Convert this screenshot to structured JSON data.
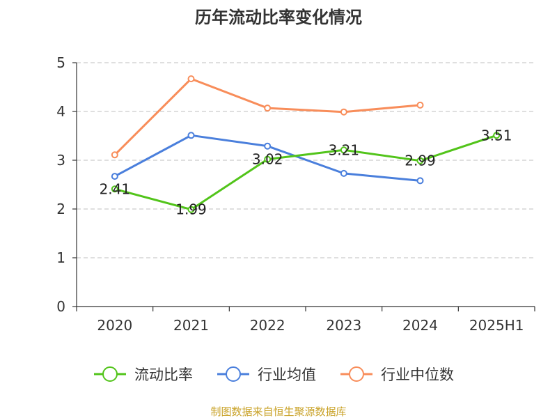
{
  "chart_data": {
    "type": "line",
    "title": "历年流动比率变化情况",
    "categories": [
      "2020",
      "2021",
      "2022",
      "2023",
      "2024",
      "2025H1"
    ],
    "ylim": [
      0,
      5
    ],
    "yticks": [
      "0",
      "1",
      "2",
      "3",
      "4",
      "5"
    ],
    "grid": true,
    "legend_position": "bottom",
    "series": [
      {
        "name": "流动比率",
        "color": "#52c41a",
        "values": [
          2.41,
          1.99,
          3.02,
          3.21,
          2.99,
          3.51
        ],
        "labels": [
          "2.41",
          "1.99",
          "3.02",
          "3.21",
          "2.99",
          "3.51"
        ]
      },
      {
        "name": "行业均值",
        "color": "#4a7fdc",
        "values": [
          2.67,
          3.51,
          3.29,
          2.73,
          2.58,
          null
        ]
      },
      {
        "name": "行业中位数",
        "color": "#f88d5a",
        "values": [
          3.11,
          4.67,
          4.07,
          3.99,
          4.13,
          null
        ]
      }
    ]
  },
  "source": {
    "text": "制图数据来自恒生聚源数据库",
    "color": "#c9a227"
  }
}
